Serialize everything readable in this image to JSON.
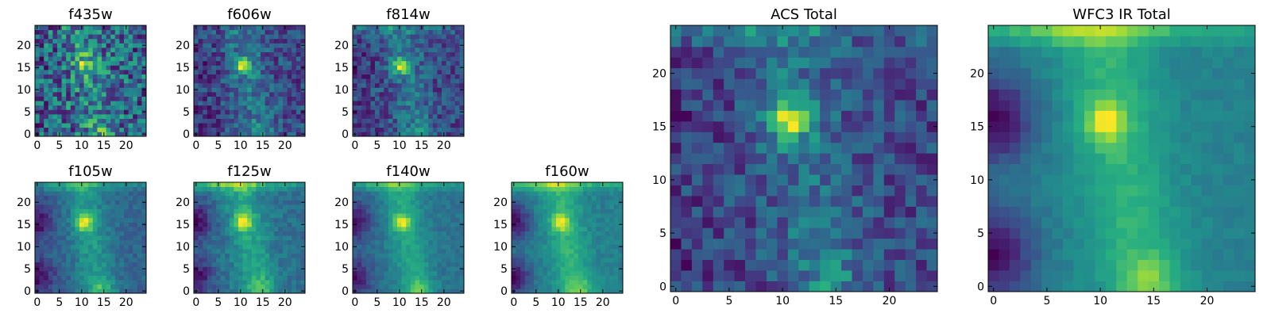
{
  "chart_data": {
    "type": "heatmap",
    "colormap": "viridis",
    "grid_size": 25,
    "grid": false,
    "legend": "none",
    "xticks": [
      0,
      5,
      10,
      15,
      20
    ],
    "yticks_small": [
      0,
      5,
      10,
      15,
      20
    ],
    "yticks_large": [
      0,
      5,
      10,
      15,
      20
    ],
    "xlim": [
      0,
      25
    ],
    "ylim": [
      0,
      25
    ],
    "panels": [
      {
        "title": "f435w",
        "model": {
          "noise": 0.34,
          "blob": 0.45,
          "band": 0.32,
          "left": 0.05,
          "top": 0.0,
          "base": 0.55,
          "seed": 3
        }
      },
      {
        "title": "f606w",
        "model": {
          "noise": 0.22,
          "blob": 0.75,
          "band": 0.38,
          "left": 0.12,
          "top": 0.0,
          "base": 0.42,
          "seed": 7
        }
      },
      {
        "title": "f814w",
        "model": {
          "noise": 0.24,
          "blob": 0.8,
          "band": 0.45,
          "left": 0.12,
          "top": 0.25,
          "base": 0.4,
          "seed": 11
        }
      },
      {
        "title": "f105w",
        "model": {
          "noise": 0.1,
          "blob": 0.7,
          "band": 0.52,
          "left": 0.38,
          "top": 0.35,
          "base": 0.42,
          "seed": 13
        }
      },
      {
        "title": "f125w",
        "model": {
          "noise": 0.1,
          "blob": 0.55,
          "band": 0.5,
          "left": 0.4,
          "top": 0.5,
          "base": 0.42,
          "seed": 17
        }
      },
      {
        "title": "f140w",
        "model": {
          "noise": 0.08,
          "blob": 0.6,
          "band": 0.55,
          "left": 0.48,
          "top": 0.45,
          "base": 0.44,
          "seed": 19
        }
      },
      {
        "title": "f160w",
        "model": {
          "noise": 0.08,
          "blob": 0.55,
          "band": 0.55,
          "left": 0.55,
          "top": 0.5,
          "base": 0.45,
          "seed": 23
        }
      },
      {
        "title": "ACS Total",
        "model": {
          "noise": 0.22,
          "blob": 0.8,
          "band": 0.4,
          "left": 0.1,
          "top": 0.3,
          "base": 0.42,
          "seed": 29
        }
      },
      {
        "title": "WFC3 IR Total",
        "model": {
          "noise": 0.05,
          "blob": 0.55,
          "band": 0.55,
          "left": 0.6,
          "top": 0.5,
          "base": 0.45,
          "seed": 31
        }
      }
    ]
  }
}
